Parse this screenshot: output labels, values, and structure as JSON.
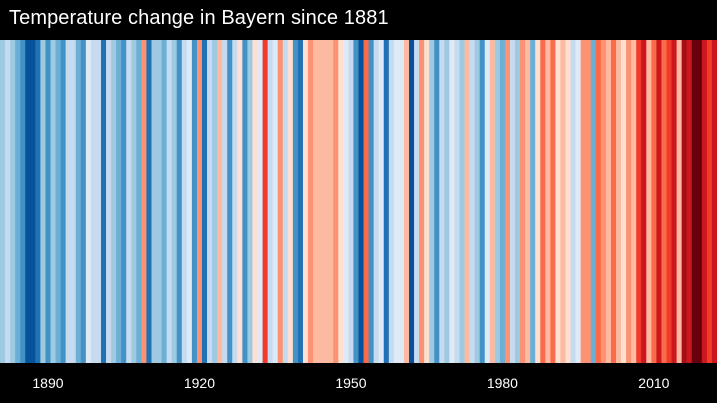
{
  "chart_data": {
    "type": "heatmap",
    "title": "Temperature change in Bayern since 1881",
    "x_start_year": 1881,
    "x_end_year": 2022,
    "tick_labels": [
      "1890",
      "1920",
      "1950",
      "1980",
      "2010"
    ],
    "tick_years": [
      1890,
      1920,
      1950,
      1980,
      2010
    ],
    "color_scale": [
      "#08306b",
      "#08519c",
      "#2171b5",
      "#4292c6",
      "#6baed6",
      "#9ecae1",
      "#c6dbef",
      "#deebf7",
      "#fee0d2",
      "#fcbba1",
      "#fc9272",
      "#fb6a4a",
      "#ef3b2c",
      "#cb181d",
      "#a50f15",
      "#67000d"
    ],
    "levels": [
      5,
      6,
      5,
      4,
      3,
      1,
      1,
      2,
      5,
      3,
      5,
      4,
      3,
      6,
      6,
      4,
      3,
      7,
      6,
      6,
      2,
      6,
      5,
      4,
      3,
      6,
      5,
      4,
      10,
      2,
      5,
      5,
      4,
      6,
      5,
      3,
      6,
      7,
      3,
      10,
      2,
      6,
      5,
      9,
      6,
      3,
      6,
      8,
      3,
      5,
      8,
      7,
      12,
      6,
      7,
      10,
      6,
      8,
      3,
      2,
      8,
      10,
      9,
      9,
      9,
      9,
      10,
      8,
      7,
      6,
      3,
      1,
      11,
      3,
      6,
      7,
      2,
      6,
      7,
      7,
      9,
      1,
      6,
      10,
      8,
      5,
      3,
      6,
      5,
      7,
      6,
      5,
      9,
      6,
      5,
      3,
      7,
      9,
      5,
      4,
      10,
      6,
      5,
      10,
      9,
      4,
      8,
      11,
      9,
      11,
      8,
      9,
      8,
      6,
      7,
      10,
      10,
      4,
      11,
      10,
      9,
      11,
      9,
      8,
      10,
      9,
      12,
      13,
      9,
      11,
      13,
      11,
      12,
      13,
      9,
      14,
      13,
      15,
      15,
      13,
      12,
      13
    ]
  }
}
